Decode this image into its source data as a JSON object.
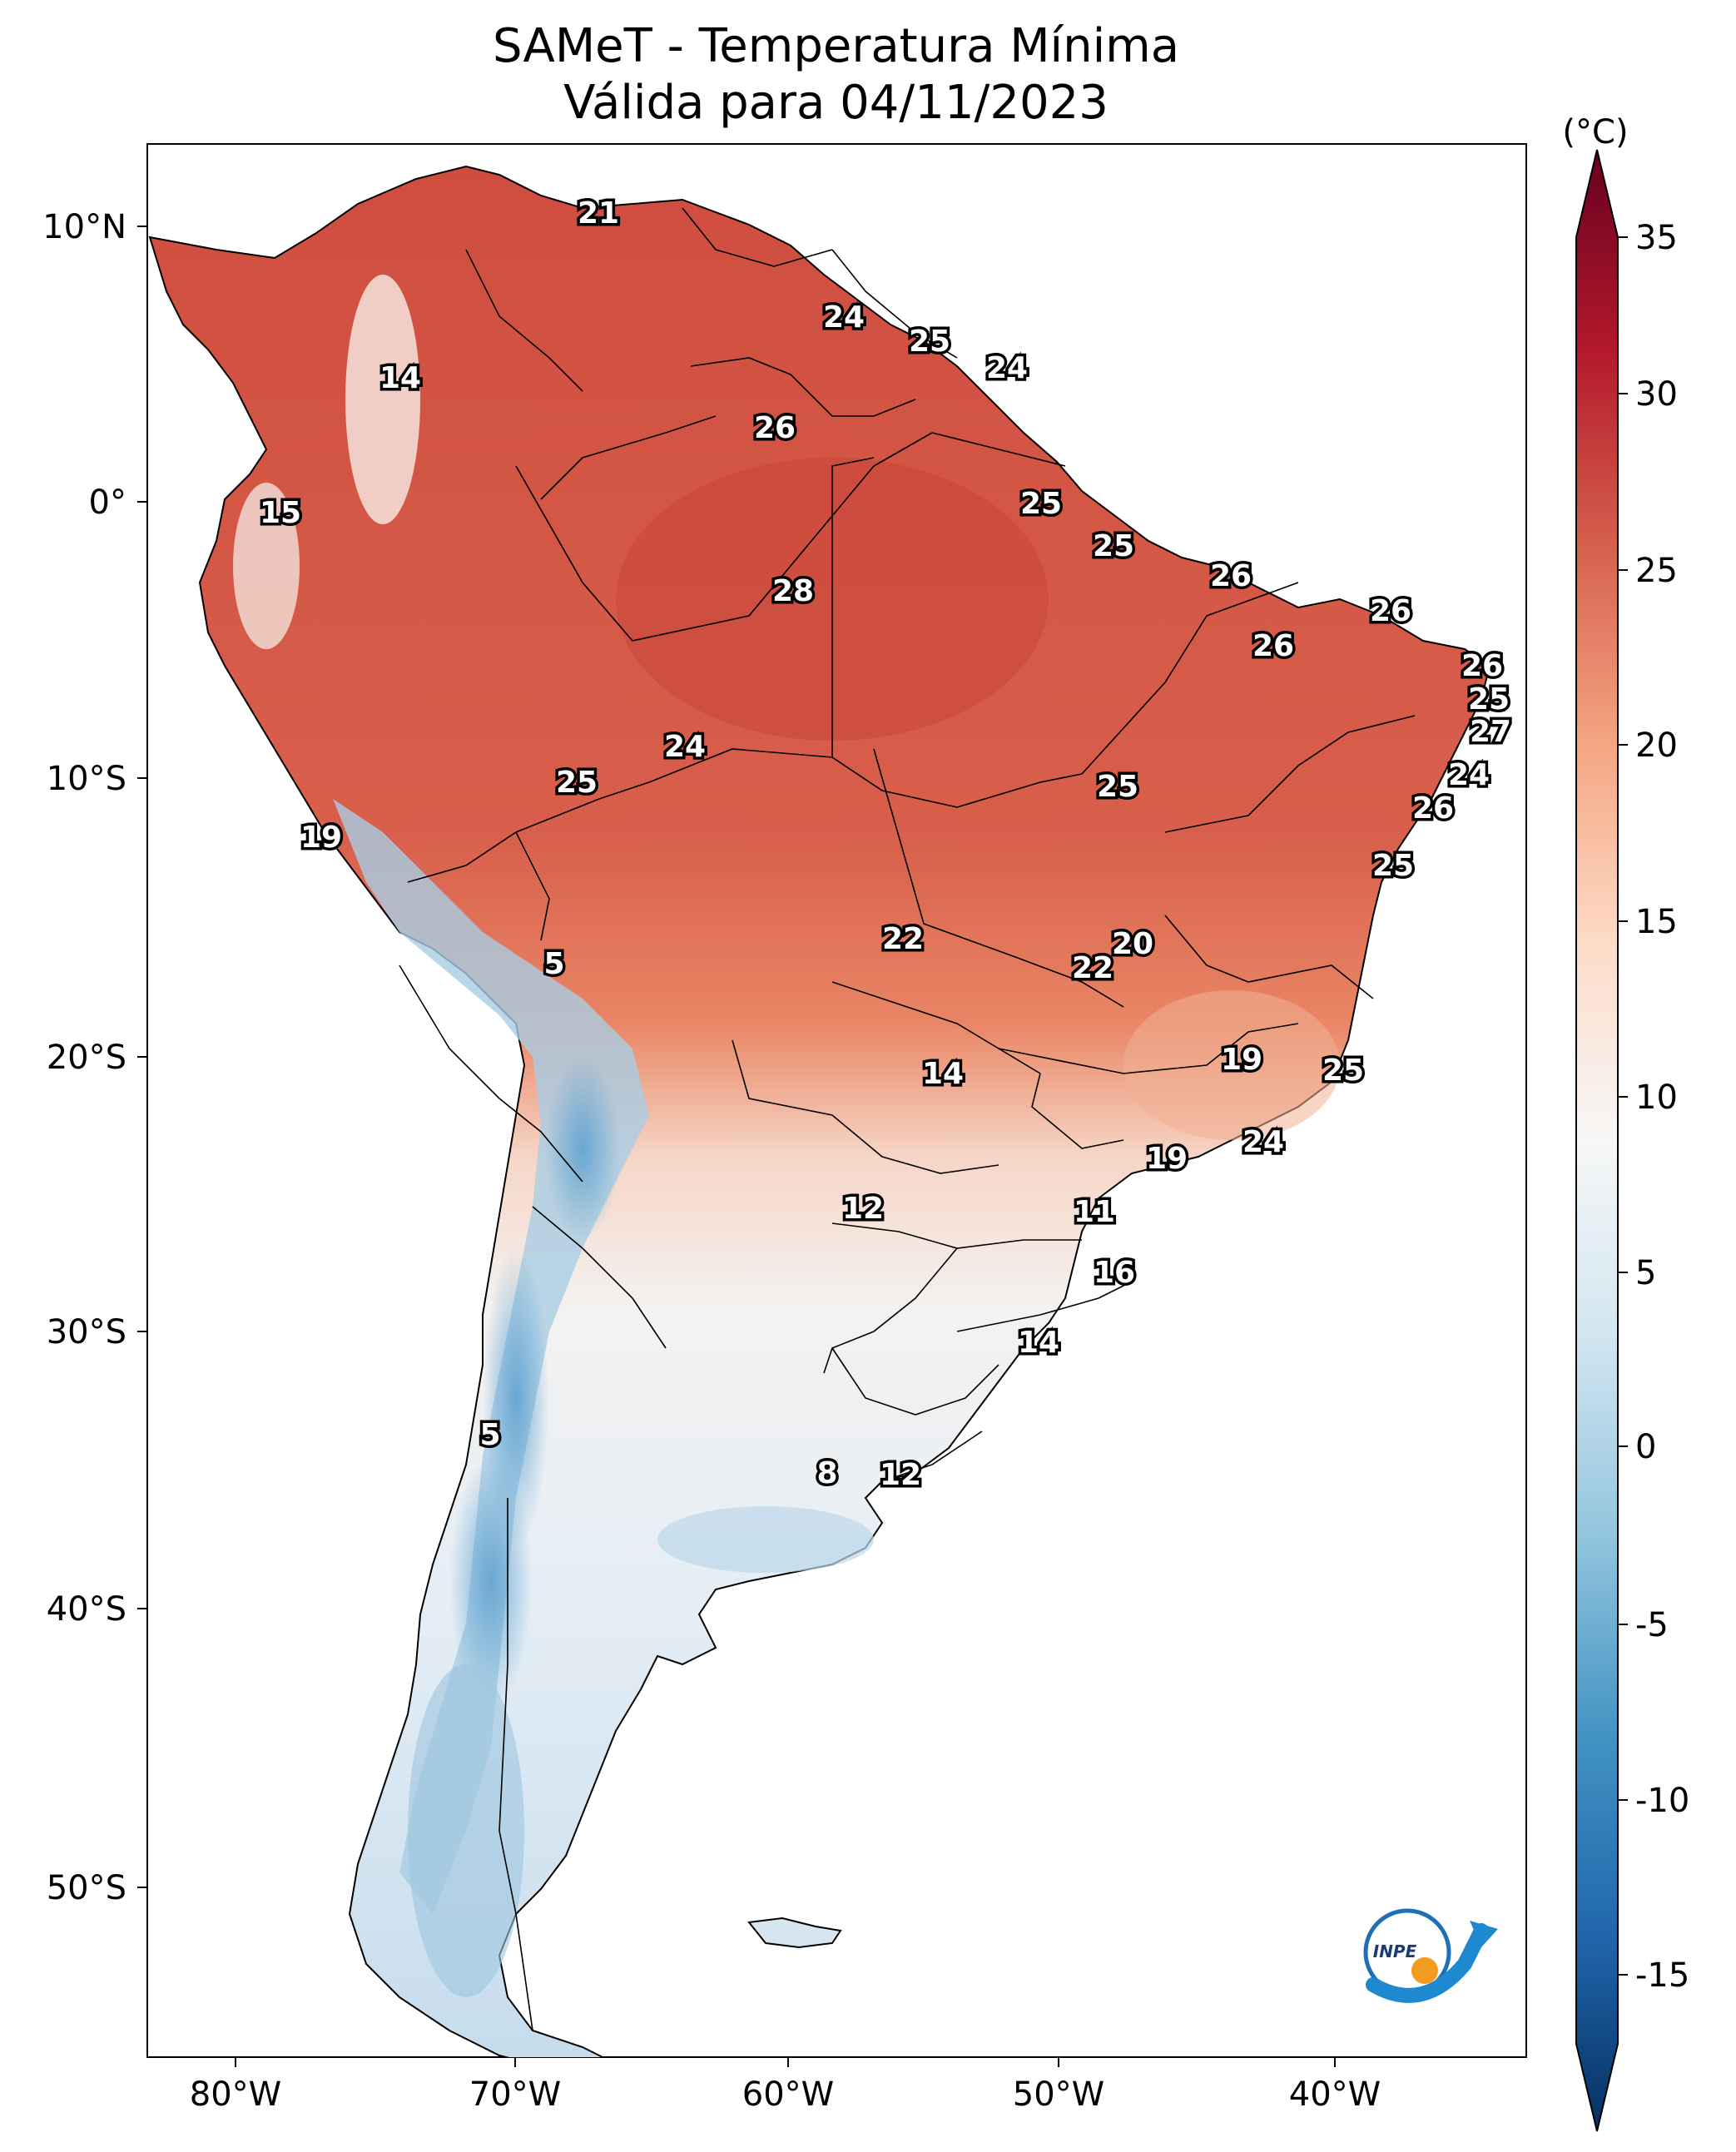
{
  "title": {
    "line1": "SAMeT - Temperatura Mínima",
    "line2": "Válida para 04/11/2023"
  },
  "axes": {
    "lon_ticks": [
      "80°W",
      "70°W",
      "60°W",
      "50°W",
      "40°W"
    ],
    "lat_ticks": [
      "10°N",
      "0°",
      "10°S",
      "20°S",
      "30°S",
      "40°S",
      "50°S"
    ]
  },
  "colorbar": {
    "unit": "(°C)",
    "ticks": [
      "35",
      "30",
      "25",
      "20",
      "15",
      "10",
      "5",
      "0",
      "-5",
      "-10",
      "-15"
    ],
    "colors": [
      "#67001f",
      "#b2182b",
      "#d6604d",
      "#f4a582",
      "#fddbc7",
      "#f7f7f7",
      "#d1e5f0",
      "#92c5de",
      "#4393c3",
      "#2166ac",
      "#053061"
    ]
  },
  "map_values": [
    {
      "name": "caribbean-coast",
      "value": "21"
    },
    {
      "name": "guyana",
      "value": "24"
    },
    {
      "name": "suriname",
      "value": "25"
    },
    {
      "name": "french-guiana",
      "value": "24"
    },
    {
      "name": "colombia-andes",
      "value": "14"
    },
    {
      "name": "roraima",
      "value": "26"
    },
    {
      "name": "ecuador",
      "value": "15"
    },
    {
      "name": "amapa",
      "value": "25"
    },
    {
      "name": "para-north",
      "value": "25"
    },
    {
      "name": "amazonas",
      "value": "28"
    },
    {
      "name": "maranhao",
      "value": "26"
    },
    {
      "name": "ceara",
      "value": "26"
    },
    {
      "name": "piaui",
      "value": "26"
    },
    {
      "name": "rio-grande-do-norte",
      "value": "26"
    },
    {
      "name": "paraiba",
      "value": "25"
    },
    {
      "name": "pernambuco",
      "value": "27"
    },
    {
      "name": "alagoas",
      "value": "24"
    },
    {
      "name": "acre-south",
      "value": "24"
    },
    {
      "name": "acre",
      "value": "25"
    },
    {
      "name": "tocantins",
      "value": "25"
    },
    {
      "name": "sergipe",
      "value": "26"
    },
    {
      "name": "peru-coast",
      "value": "19"
    },
    {
      "name": "bahia",
      "value": "25"
    },
    {
      "name": "mato-grosso",
      "value": "22"
    },
    {
      "name": "goias-north",
      "value": "20"
    },
    {
      "name": "goias",
      "value": "22"
    },
    {
      "name": "altiplano",
      "value": "5"
    },
    {
      "name": "minas-gerais",
      "value": "19"
    },
    {
      "name": "espirito-santo",
      "value": "25"
    },
    {
      "name": "mato-grosso-do-sul",
      "value": "14"
    },
    {
      "name": "rio-de-janeiro",
      "value": "24"
    },
    {
      "name": "sao-paulo",
      "value": "19"
    },
    {
      "name": "paraguay",
      "value": "12"
    },
    {
      "name": "parana",
      "value": "11"
    },
    {
      "name": "santa-catarina",
      "value": "16"
    },
    {
      "name": "rio-grande-do-sul",
      "value": "14"
    },
    {
      "name": "andes-central",
      "value": "5"
    },
    {
      "name": "buenos-aires",
      "value": "8"
    },
    {
      "name": "uruguay",
      "value": "12"
    }
  ],
  "logo": {
    "text": "INPE"
  }
}
